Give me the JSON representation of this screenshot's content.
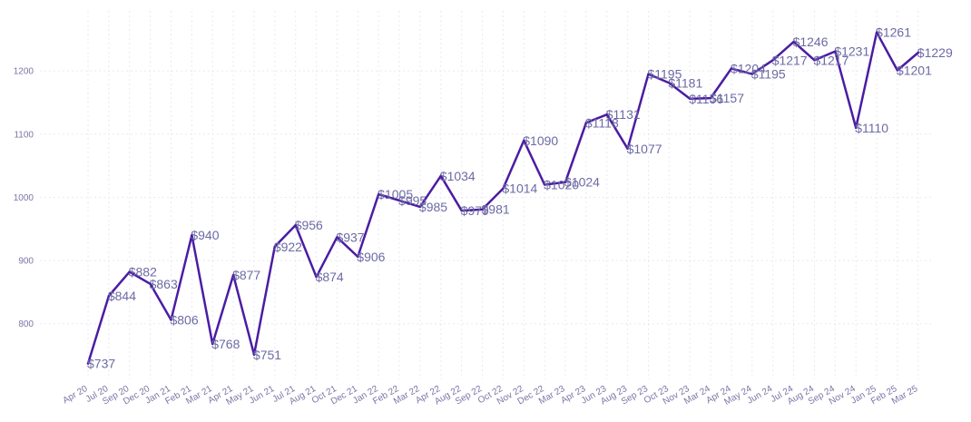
{
  "chart_data": {
    "type": "line",
    "title": "",
    "xlabel": "",
    "ylabel": "",
    "ylim": [
      712,
      1295
    ],
    "yticks": [
      "800",
      "900",
      "1000",
      "1100",
      "1200"
    ],
    "series_color": "#4b1ca3",
    "label_color": "#6c6aa4",
    "categories": [
      "Apr 20",
      "Jul 20",
      "Sep 20",
      "Dec 20",
      "Jan 21",
      "Feb 21",
      "Mar 21",
      "Apr 21",
      "May 21",
      "Jun 21",
      "Jul 21",
      "Aug 21",
      "Oct 21",
      "Dec 21",
      "Jan 22",
      "Feb 22",
      "Mar 22",
      "Apr 22",
      "Aug 22",
      "Sep 22",
      "Oct 22",
      "Nov 22",
      "Dec 22",
      "Mar 23",
      "Apr 23",
      "Jun 23",
      "Aug 23",
      "Sep 23",
      "Oct 23",
      "Nov 23",
      "Mar 24",
      "Apr 24",
      "May 24",
      "Jun 24",
      "Jul 24",
      "Aug 24",
      "Sep 24",
      "Nov 24",
      "Jan 25",
      "Feb 25",
      "Mar 25"
    ],
    "values": [
      737,
      844,
      882,
      863,
      806,
      940,
      768,
      877,
      751,
      922,
      956,
      874,
      937,
      906,
      1005,
      995,
      985,
      1034,
      979,
      981,
      1014,
      1090,
      1020,
      1024,
      1118,
      1131,
      1077,
      1195,
      1181,
      1156,
      1157,
      1204,
      1195,
      1217,
      1246,
      1217,
      1231,
      1110,
      1261,
      1201,
      1229
    ],
    "data_labels": [
      "$737",
      "$844",
      "$882",
      "$863",
      "$806",
      "$940",
      "$768",
      "$877",
      "$751",
      "$922",
      "$956",
      "$874",
      "$937",
      "$906",
      "$1005",
      "$995",
      "$985",
      "$1034",
      "$979",
      "$981",
      "$1014",
      "$1090",
      "$1020",
      "$1024",
      "$1118",
      "$1131",
      "$1077",
      "$1195",
      "$1181",
      "$1156",
      "$1157",
      "$1204",
      "$1195",
      "$1217",
      "$1246",
      "$1217",
      "$1231",
      "$1110",
      "$1261",
      "$1201",
      "$1229"
    ]
  }
}
